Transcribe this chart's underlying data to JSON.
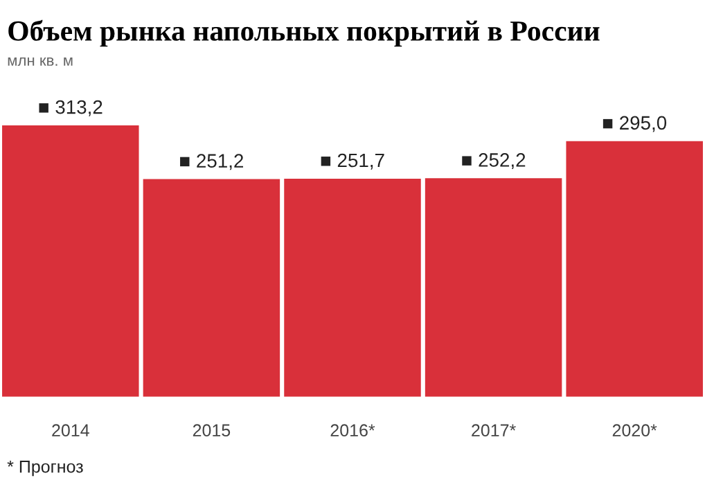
{
  "chart_data": {
    "type": "bar",
    "title": "Объем рынка напольных покрытий в России",
    "subtitle": "млн кв. м",
    "categories": [
      "2014",
      "2015",
      "2016*",
      "2017*",
      "2020*"
    ],
    "values": [
      313.2,
      251.2,
      251.7,
      252.2,
      295.0
    ],
    "value_labels": [
      "■ 313,2",
      "■ 251,2",
      "■ 251,7",
      "■ 252,2",
      "■ 295,0"
    ],
    "color": "#d9303a",
    "relative": false,
    "grid": false,
    "legend": false,
    "tick_labels": "x",
    "annotations": [
      "* Прогноз"
    ]
  }
}
